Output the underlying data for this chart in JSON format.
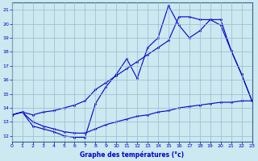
{
  "title": "Graphe des températures (°c)",
  "bg_color": "#cce8f0",
  "line_color": "#0000cc",
  "grid_color": "#99bbcc",
  "ylabel_ticks": [
    12,
    13,
    14,
    15,
    16,
    17,
    18,
    19,
    20,
    21
  ],
  "xlabel_ticks": [
    0,
    1,
    2,
    3,
    4,
    5,
    6,
    7,
    8,
    9,
    10,
    11,
    12,
    13,
    14,
    15,
    16,
    17,
    18,
    19,
    20,
    21,
    22,
    23
  ],
  "line1_x": [
    0,
    1,
    2,
    3,
    4,
    5,
    6,
    7,
    8,
    9,
    10,
    11,
    12,
    13,
    14,
    15,
    16,
    17,
    18,
    19,
    20,
    21,
    22,
    23
  ],
  "line1_y": [
    13.5,
    13.7,
    12.7,
    12.5,
    12.3,
    12.0,
    11.9,
    11.9,
    14.3,
    15.5,
    16.4,
    17.5,
    16.1,
    18.3,
    19.0,
    21.3,
    19.9,
    19.0,
    19.5,
    20.3,
    19.9,
    18.1,
    16.4,
    14.5
  ],
  "line2_x": [
    0,
    1,
    2,
    3,
    4,
    5,
    6,
    7,
    8,
    9,
    10,
    11,
    12,
    13,
    14,
    15,
    16,
    17,
    18,
    19,
    20,
    21,
    22,
    23
  ],
  "line2_y": [
    13.5,
    13.7,
    13.5,
    13.7,
    13.8,
    14.0,
    14.2,
    14.5,
    15.3,
    15.8,
    16.3,
    16.8,
    17.3,
    17.8,
    18.3,
    18.8,
    20.5,
    20.5,
    20.3,
    20.3,
    20.3,
    18.1,
    16.4,
    14.5
  ],
  "line3_x": [
    0,
    1,
    2,
    3,
    4,
    5,
    6,
    7,
    8,
    9,
    10,
    11,
    12,
    13,
    14,
    15,
    16,
    17,
    18,
    19,
    20,
    21,
    22,
    23
  ],
  "line3_y": [
    13.5,
    13.7,
    13.0,
    12.7,
    12.5,
    12.3,
    12.2,
    12.2,
    12.5,
    12.8,
    13.0,
    13.2,
    13.4,
    13.5,
    13.7,
    13.8,
    14.0,
    14.1,
    14.2,
    14.3,
    14.4,
    14.4,
    14.5,
    14.5
  ],
  "xlim": [
    0,
    23
  ],
  "ylim": [
    11.6,
    21.5
  ]
}
